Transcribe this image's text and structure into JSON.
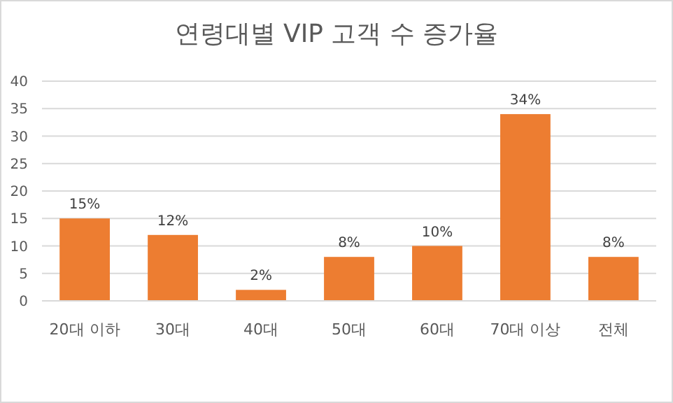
{
  "chart_data": {
    "type": "bar",
    "title": "연령대별 VIP 고객 수 증가율",
    "categories": [
      "20대 이하",
      "30대",
      "40대",
      "50대",
      "60대",
      "70대 이상",
      "전체"
    ],
    "values": [
      15,
      12,
      2,
      8,
      10,
      34,
      8
    ],
    "value_labels": [
      "15%",
      "12%",
      "2%",
      "8%",
      "10%",
      "34%",
      "8%"
    ],
    "color": "#ed7d31",
    "ylim": [
      0,
      40
    ],
    "yticks": [
      0,
      5,
      10,
      15,
      20,
      25,
      30,
      35,
      40
    ],
    "grid": "y"
  }
}
